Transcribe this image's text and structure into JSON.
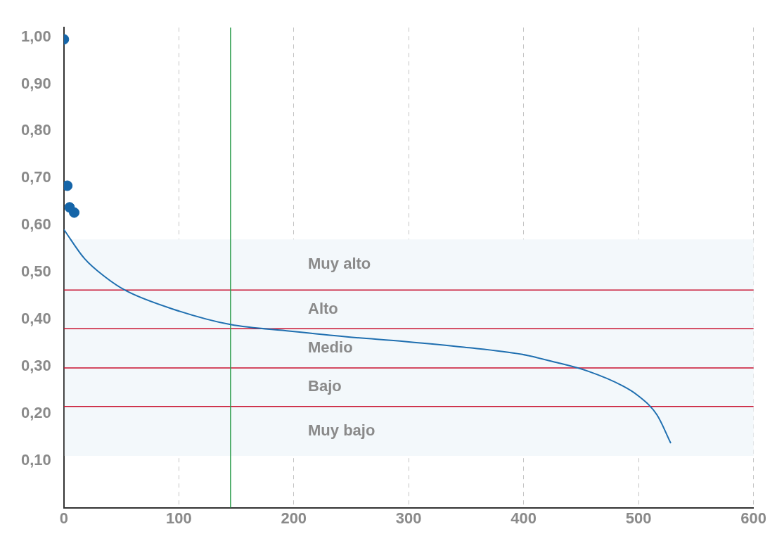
{
  "chart_data": {
    "type": "line",
    "xlim": [
      0,
      600
    ],
    "xticks": [
      0,
      100,
      200,
      300,
      400,
      500,
      600
    ],
    "ylim": [
      0,
      1.02
    ],
    "yticks": [
      {
        "value": 0.1,
        "label": "0,10"
      },
      {
        "value": 0.2,
        "label": "0,20"
      },
      {
        "value": 0.3,
        "label": "0,30"
      },
      {
        "value": 0.4,
        "label": "0,40"
      },
      {
        "value": 0.5,
        "label": "0,50"
      },
      {
        "value": 0.6,
        "label": "0,60"
      },
      {
        "value": 0.7,
        "label": "0,70"
      },
      {
        "value": 0.8,
        "label": "0,80"
      },
      {
        "value": 0.9,
        "label": "0,90"
      },
      {
        "value": 1.0,
        "label": "1,00"
      }
    ],
    "grid": "x",
    "legend": false,
    "series": [
      {
        "type": "line",
        "marker": "none",
        "color": "#1f6fb0",
        "x": [
          0,
          18,
          36,
          54,
          96,
          145,
          197,
          246,
          297,
          348,
          398,
          426,
          456,
          486,
          499,
          516,
          528
        ],
        "values": [
          0.591,
          0.529,
          0.49,
          0.461,
          0.421,
          0.389,
          0.375,
          0.363,
          0.353,
          0.341,
          0.326,
          0.31,
          0.29,
          0.259,
          0.239,
          0.197,
          0.137
        ]
      },
      {
        "type": "scatter",
        "marker": "circle",
        "color": "#1565a8",
        "x": [
          0,
          3,
          5,
          9
        ],
        "values": [
          0.995,
          0.684,
          0.638,
          0.627
        ]
      }
    ],
    "bands": [
      {
        "axis": "y",
        "from": 0.4625,
        "to": 0.57,
        "label": "Muy alto",
        "color": "#f3f8fb"
      },
      {
        "axis": "y",
        "from": 0.38,
        "to": 0.4625,
        "label": "Alto",
        "color": "#f3f8fb"
      },
      {
        "axis": "y",
        "from": 0.297,
        "to": 0.38,
        "label": "Medio",
        "color": "#f3f8fb"
      },
      {
        "axis": "y",
        "from": 0.215,
        "to": 0.297,
        "label": "Bajo",
        "color": "#f3f8fb"
      },
      {
        "axis": "y",
        "from": 0.11,
        "to": 0.215,
        "label": "Muy bajo",
        "color": "#f3f8fb"
      }
    ],
    "ref_lines": [
      {
        "axis": "y",
        "value": 0.4625,
        "color": "#c8102e"
      },
      {
        "axis": "y",
        "value": 0.38,
        "color": "#c8102e"
      },
      {
        "axis": "y",
        "value": 0.297,
        "color": "#c8102e"
      },
      {
        "axis": "y",
        "value": 0.215,
        "color": "#c8102e"
      },
      {
        "axis": "x",
        "value": 145,
        "color": "#2e9e4f"
      }
    ]
  }
}
